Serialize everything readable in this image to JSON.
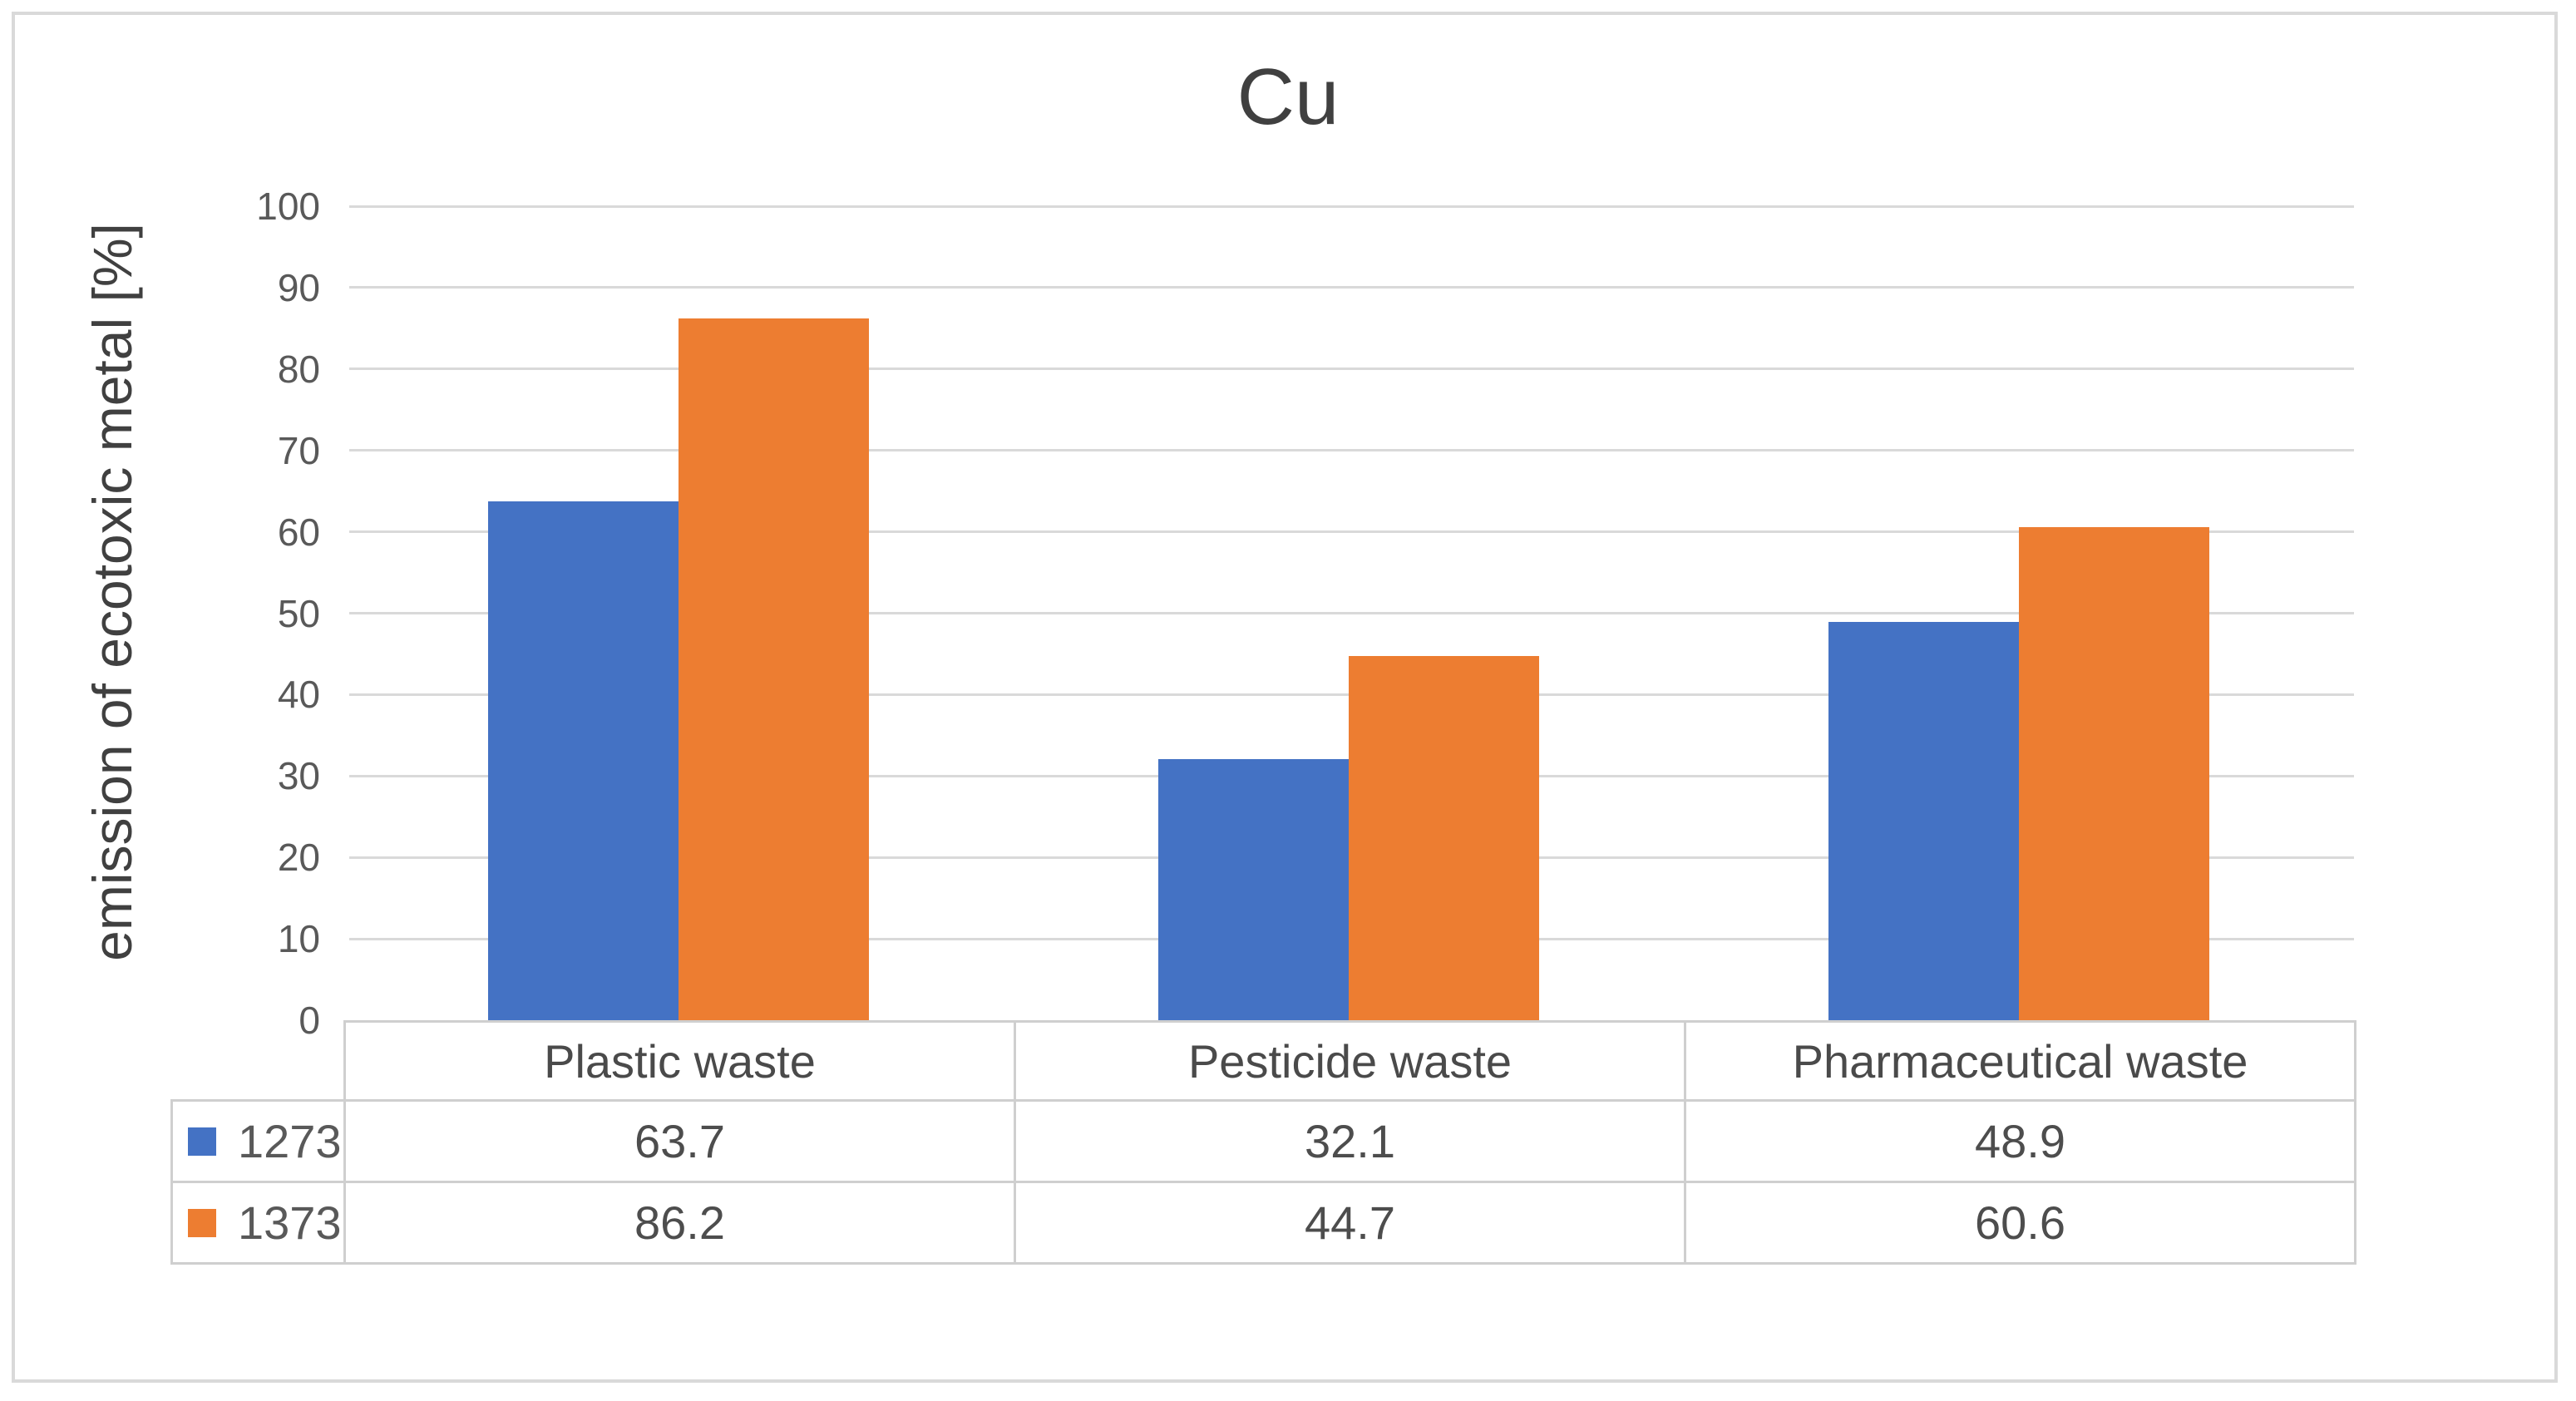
{
  "chart_data": {
    "type": "bar",
    "title": "Cu",
    "ylabel": "emission of ecotoxic metal [%]",
    "xlabel": "",
    "categories": [
      "Plastic waste",
      "Pesticide waste",
      "Pharmaceutical waste"
    ],
    "series": [
      {
        "name": "1273",
        "color": "#4472C4",
        "values": [
          63.7,
          32.1,
          48.9
        ]
      },
      {
        "name": "1373",
        "color": "#ED7D31",
        "values": [
          86.2,
          44.7,
          60.6
        ]
      }
    ],
    "ylim": [
      0,
      100
    ],
    "yticks": [
      0,
      10,
      20,
      30,
      40,
      50,
      60,
      70,
      80,
      90,
      100
    ],
    "grid": true,
    "legend_position": "left-of-data-table",
    "show_data_table": true
  },
  "colors": {
    "gridline": "#D9D9D9",
    "table_border": "#CFCFCF",
    "frame_border": "#D9D9D9",
    "tick_text": "#595959",
    "title_text": "#404040"
  }
}
